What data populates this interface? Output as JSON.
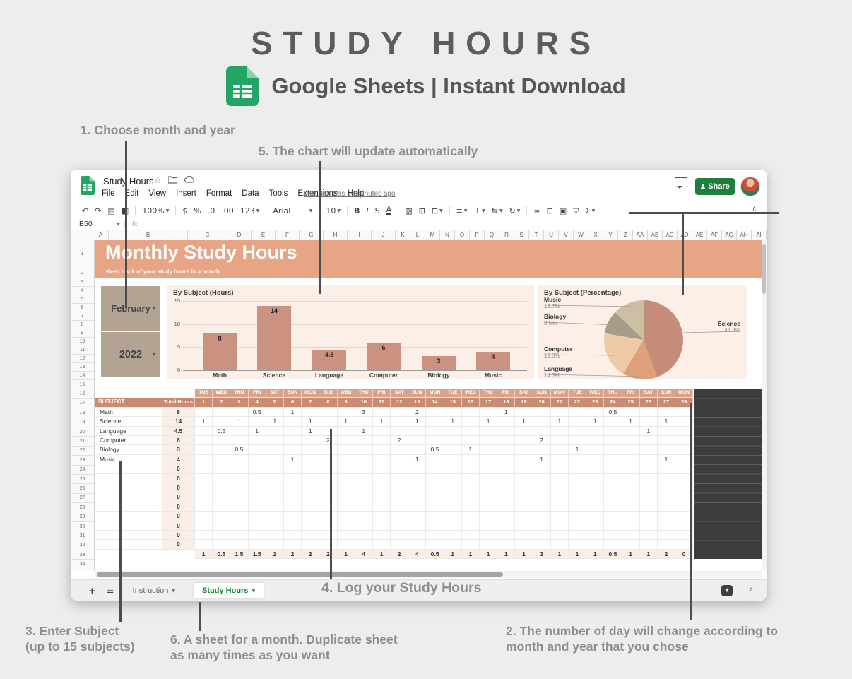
{
  "header": {
    "title": "STUDY HOURS",
    "subtitle": "Google Sheets | Instant Download"
  },
  "annotations": {
    "a1": "1. Choose month and year",
    "a2_line1": "2. The number of day will change according to",
    "a2_line2": "month and year that you chose",
    "a3_line1": "3. Enter Subject",
    "a3_line2": "(up to 15 subjects)",
    "a4": "4. Log your Study Hours",
    "a5": "5. The chart will update automatically",
    "a6_line1": "6. A sheet for a month. Duplicate sheet",
    "a6_line2": "as many times as you want"
  },
  "app": {
    "doc_title": "Study Hours",
    "menus": [
      "File",
      "Edit",
      "View",
      "Insert",
      "Format",
      "Data",
      "Tools",
      "Extensions",
      "Help"
    ],
    "last_edit": "Last edit was 16 minutes ago",
    "share_label": "Share",
    "name_box": "B50",
    "fx": "fx",
    "collapse_icon": "∧",
    "star_icon": "☆"
  },
  "toolbar": [
    {
      "name": "undo-icon",
      "glyph": "↶"
    },
    {
      "name": "redo-icon",
      "glyph": "↷"
    },
    {
      "name": "print-icon",
      "glyph": "▤"
    },
    {
      "name": "paint-format-icon",
      "glyph": "◧"
    },
    {
      "divider": true
    },
    {
      "name": "zoom-select",
      "glyph": "100%",
      "caret": true
    },
    {
      "divider": true
    },
    {
      "name": "currency-format-icon",
      "glyph": "$"
    },
    {
      "name": "percent-format-icon",
      "glyph": "%"
    },
    {
      "name": "decrease-decimal-icon",
      "glyph": ".0"
    },
    {
      "name": "increase-decimal-icon",
      "glyph": ".00"
    },
    {
      "name": "number-format-select",
      "glyph": "123",
      "caret": true
    },
    {
      "divider": true
    },
    {
      "name": "font-select",
      "glyph": "Arial",
      "caret": true,
      "cls": "wide"
    },
    {
      "divider": true
    },
    {
      "name": "font-size-select",
      "glyph": "10",
      "caret": true
    },
    {
      "divider": true
    },
    {
      "name": "bold-icon",
      "glyph": "B",
      "cls": "b"
    },
    {
      "name": "italic-icon",
      "glyph": "I",
      "cls": "i"
    },
    {
      "name": "strikethrough-icon",
      "glyph": "S",
      "cls": "strike"
    },
    {
      "name": "text-color-icon",
      "glyph": "A",
      "cls": "ul"
    },
    {
      "divider": true
    },
    {
      "name": "fill-color-icon",
      "glyph": "▨"
    },
    {
      "name": "borders-icon",
      "glyph": "⊞"
    },
    {
      "name": "merge-cells-icon",
      "glyph": "⊟",
      "caret": true
    },
    {
      "divider": true
    },
    {
      "name": "horizontal-align-icon",
      "glyph": "≡",
      "caret": true
    },
    {
      "name": "vertical-align-icon",
      "glyph": "⊥",
      "caret": true
    },
    {
      "name": "text-wrap-icon",
      "glyph": "⇆",
      "caret": true
    },
    {
      "name": "text-rotation-icon",
      "glyph": "↻",
      "caret": true
    },
    {
      "divider": true
    },
    {
      "name": "insert-link-icon",
      "glyph": "∞"
    },
    {
      "name": "insert-comment-icon",
      "glyph": "⊡"
    },
    {
      "name": "insert-chart-icon",
      "glyph": "▣"
    },
    {
      "name": "filter-icon",
      "glyph": "▽"
    },
    {
      "name": "functions-icon",
      "glyph": "Σ",
      "caret": true
    }
  ],
  "columns": [
    "A",
    "B",
    "C",
    "D",
    "E",
    "F",
    "G",
    "H",
    "I",
    "J",
    "K",
    "L",
    "M",
    "N",
    "O",
    "P",
    "Q",
    "R",
    "S",
    "T",
    "U",
    "V",
    "W",
    "X",
    "Y",
    "Z",
    "AA",
    "AB",
    "AC",
    "AD",
    "AE",
    "AF",
    "AG",
    "AH",
    "AI"
  ],
  "row_count": 34,
  "sheet": {
    "banner_title": "Monthly Study Hours",
    "banner_subtitle": "Keep track of your study hours in a month",
    "month": "February",
    "year": "2022",
    "table": {
      "subject_header": "SUBJECT",
      "total_header": "Total Hours",
      "weekdays": [
        "TUE",
        "WED",
        "THU",
        "FRI",
        "SAT",
        "SUN",
        "MON",
        "TUE",
        "WED",
        "THU",
        "FRI",
        "SAT",
        "SUN",
        "MON",
        "TUE",
        "WED",
        "THU",
        "FRI",
        "SAT",
        "SUN",
        "MON",
        "TUE",
        "WED",
        "THU",
        "FRI",
        "SAT",
        "SUN",
        "MON"
      ],
      "day_numbers": [
        "1",
        "2",
        "3",
        "4",
        "5",
        "6",
        "7",
        "8",
        "9",
        "10",
        "11",
        "12",
        "13",
        "14",
        "15",
        "16",
        "17",
        "18",
        "19",
        "20",
        "21",
        "22",
        "23",
        "24",
        "25",
        "26",
        "27",
        "28"
      ],
      "subjects": [
        {
          "name": "Math",
          "total": "8",
          "hours": {
            "4": "0.5",
            "6": "1",
            "10": "3",
            "13": "2",
            "18": "1",
            "24": "0.5"
          }
        },
        {
          "name": "Science",
          "total": "14",
          "hours": {
            "1": "1",
            "3": "1",
            "5": "1",
            "7": "1",
            "9": "1",
            "11": "1",
            "13": "1",
            "15": "1",
            "17": "1",
            "19": "1",
            "21": "1",
            "23": "1",
            "25": "1",
            "27": "1"
          }
        },
        {
          "name": "Language",
          "total": "4.5",
          "hours": {
            "2": "0.5",
            "4": "1",
            "7": "1",
            "10": "1",
            "26": "1"
          }
        },
        {
          "name": "Computer",
          "total": "6",
          "hours": {
            "8": "2",
            "12": "2",
            "20": "2"
          }
        },
        {
          "name": "Biology",
          "total": "3",
          "hours": {
            "3": "0.5",
            "14": "0.5",
            "16": "1",
            "22": "1"
          }
        },
        {
          "name": "Music",
          "total": "4",
          "hours": {
            "6": "1",
            "13": "1",
            "20": "1",
            "27": "1"
          }
        }
      ],
      "empty_row_count": 9,
      "empty_total": "0",
      "daily_totals": [
        "1",
        "0.5",
        "1.5",
        "1.5",
        "1",
        "2",
        "2",
        "2",
        "1",
        "4",
        "1",
        "2",
        "4",
        "0.5",
        "1",
        "1",
        "1",
        "1",
        "1",
        "3",
        "1",
        "1",
        "1",
        "0.5",
        "1",
        "1",
        "2",
        "0"
      ]
    },
    "tabs": {
      "add_icon": "+",
      "all_sheets_icon": "≡",
      "items": [
        {
          "label": "Instruction",
          "active": false
        },
        {
          "label": "Study Hours",
          "active": true
        }
      ]
    }
  },
  "chart_data": [
    {
      "type": "bar",
      "title": "By Subject (Hours)",
      "categories": [
        "Math",
        "Science",
        "Language",
        "Computer",
        "Biology",
        "Music"
      ],
      "values": [
        8,
        14,
        4.5,
        6,
        3,
        4
      ],
      "value_labels": [
        "8",
        "14",
        "4.5",
        "6",
        "3",
        "4"
      ],
      "xlabel": "",
      "ylabel": "",
      "ylim": [
        0,
        15
      ],
      "yticks": [
        0,
        5,
        10,
        15
      ],
      "grid": true,
      "legend": "none"
    },
    {
      "type": "pie",
      "title": "By Subject (Percentage)",
      "labels": [
        "Science",
        "Language",
        "Computer",
        "Biology",
        "Music"
      ],
      "values": [
        44.4,
        14.3,
        19.0,
        9.5,
        12.7
      ],
      "pct_labels": [
        "44.4%",
        "14.3%",
        "19.0%",
        "9.5%",
        "12.7%"
      ],
      "colors": [
        "#c48c79",
        "#dfa07b",
        "#eecaa9",
        "#a79b89",
        "#cdbfa4"
      ],
      "legend": "callout-labels"
    }
  ],
  "colors": {
    "banner_salmon": "#e7a585",
    "month_box_taupe": "#b3a393",
    "bar_fill": "#cb9181",
    "header_dark": "#c98b71",
    "header_light": "#d9a38b",
    "cream_tint": "#fbeee6",
    "chart_panel": "#fcefe7",
    "sheets_green": "#23a566",
    "share_green": "#1e7e3e",
    "active_tab_green": "#188038",
    "annotation_gray": "#8e8e8e",
    "black_region": "#3d3d3d"
  }
}
